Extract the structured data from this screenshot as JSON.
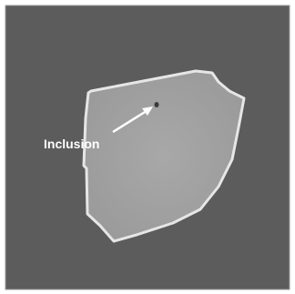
{
  "annotation": {
    "label": "Inclusion"
  }
}
